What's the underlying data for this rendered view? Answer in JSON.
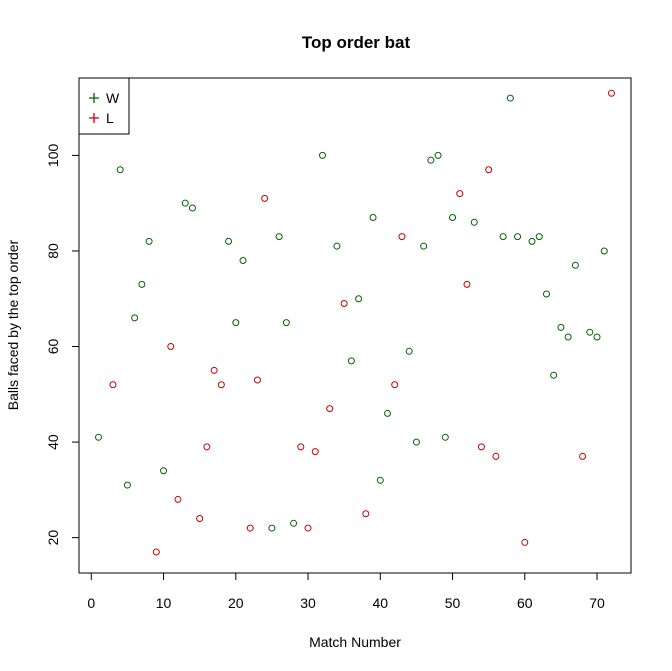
{
  "chart_data": {
    "type": "scatter",
    "title": "Top order bat",
    "xlabel": "Match Number",
    "ylabel": "Balls faced by the top order",
    "xlim": [
      -1.7,
      74.7
    ],
    "ylim": [
      12.6,
      116.2
    ],
    "x_ticks": [
      0,
      10,
      20,
      30,
      40,
      50,
      60,
      70
    ],
    "y_ticks": [
      20,
      40,
      60,
      80,
      100
    ],
    "grid": false,
    "legend_position": "top-left",
    "colors": {
      "W": "#006400",
      "L": "#cc0000"
    },
    "legend": [
      {
        "label": "W",
        "color": "#006400"
      },
      {
        "label": "L",
        "color": "#cc0000"
      }
    ],
    "series": [
      {
        "name": "W",
        "color": "#006400",
        "points": [
          [
            1,
            41
          ],
          [
            4,
            97
          ],
          [
            5,
            31
          ],
          [
            6,
            66
          ],
          [
            7,
            73
          ],
          [
            8,
            82
          ],
          [
            10,
            34
          ],
          [
            13,
            90
          ],
          [
            14,
            89
          ],
          [
            19,
            82
          ],
          [
            20,
            65
          ],
          [
            21,
            78
          ],
          [
            25,
            22
          ],
          [
            26,
            83
          ],
          [
            27,
            65
          ],
          [
            28,
            23
          ],
          [
            32,
            100
          ],
          [
            34,
            81
          ],
          [
            36,
            57
          ],
          [
            37,
            70
          ],
          [
            39,
            87
          ],
          [
            40,
            32
          ],
          [
            41,
            46
          ],
          [
            44,
            59
          ],
          [
            45,
            40
          ],
          [
            46,
            81
          ],
          [
            47,
            99
          ],
          [
            48,
            100
          ],
          [
            49,
            41
          ],
          [
            50,
            87
          ],
          [
            53,
            86
          ],
          [
            57,
            83
          ],
          [
            58,
            112
          ],
          [
            59,
            83
          ],
          [
            61,
            82
          ],
          [
            62,
            83
          ],
          [
            63,
            71
          ],
          [
            64,
            54
          ],
          [
            65,
            64
          ],
          [
            66,
            62
          ],
          [
            67,
            77
          ],
          [
            69,
            63
          ],
          [
            70,
            62
          ],
          [
            71,
            80
          ]
        ]
      },
      {
        "name": "L",
        "color": "#cc0000",
        "points": [
          [
            3,
            52
          ],
          [
            9,
            17
          ],
          [
            11,
            60
          ],
          [
            12,
            28
          ],
          [
            15,
            24
          ],
          [
            16,
            39
          ],
          [
            17,
            55
          ],
          [
            18,
            52
          ],
          [
            22,
            22
          ],
          [
            23,
            53
          ],
          [
            24,
            91
          ],
          [
            29,
            39
          ],
          [
            30,
            22
          ],
          [
            31,
            38
          ],
          [
            33,
            47
          ],
          [
            35,
            69
          ],
          [
            38,
            25
          ],
          [
            42,
            52
          ],
          [
            43,
            83
          ],
          [
            51,
            92
          ],
          [
            52,
            73
          ],
          [
            54,
            39
          ],
          [
            55,
            97
          ],
          [
            56,
            37
          ],
          [
            60,
            19
          ],
          [
            68,
            37
          ],
          [
            72,
            113
          ]
        ]
      }
    ]
  }
}
